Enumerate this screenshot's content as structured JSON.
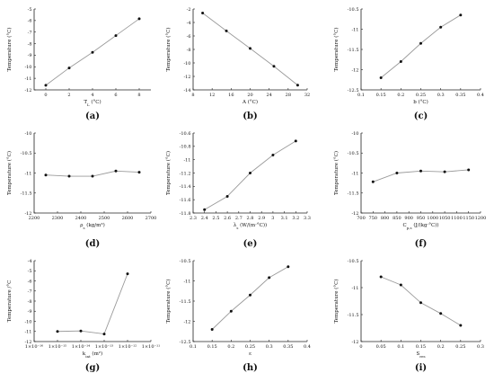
{
  "chart_data": [
    {
      "id": "a",
      "type": "line",
      "caption": "(a)",
      "xlabel": "T",
      "xlabel_sub": "L",
      "xlabel_suffix": " (°C)",
      "ylabel": "Temperature (°C)",
      "xlim": [
        -1,
        9
      ],
      "ylim": [
        -12,
        -5
      ],
      "xticks": [
        "0",
        "2",
        "4",
        "6",
        "8"
      ],
      "xtick_values": [
        0,
        2,
        4,
        6,
        8
      ],
      "yticks": [
        "-5",
        "-6",
        "-7",
        "-8",
        "-9",
        "-10",
        "-11",
        "-12"
      ],
      "ytick_values": [
        -5,
        -6,
        -7,
        -8,
        -9,
        -10,
        -11,
        -12
      ],
      "series": [
        {
          "x": [
            0,
            2,
            4,
            6,
            8
          ],
          "y": [
            -11.6,
            -10.1,
            -8.75,
            -7.3,
            -5.85
          ]
        }
      ]
    },
    {
      "id": "b",
      "type": "line",
      "caption": "(b)",
      "xlabel": "A (°C)",
      "ylabel": "Temperature (°C)",
      "xlim": [
        8,
        32
      ],
      "ylim": [
        -14,
        -2
      ],
      "xticks": [
        "8",
        "12",
        "16",
        "20",
        "24",
        "28",
        "32"
      ],
      "xtick_values": [
        8,
        12,
        16,
        20,
        24,
        28,
        32
      ],
      "yticks": [
        "-2",
        "-4",
        "-6",
        "-8",
        "-10",
        "-12",
        "-14"
      ],
      "ytick_values": [
        -2,
        -4,
        -6,
        -8,
        -10,
        -12,
        -14
      ],
      "series": [
        {
          "x": [
            10,
            15,
            20,
            25,
            30
          ],
          "y": [
            -2.6,
            -5.25,
            -7.85,
            -10.5,
            -13.3
          ]
        }
      ]
    },
    {
      "id": "c",
      "type": "line",
      "caption": "(c)",
      "xlabel": "b (°C)",
      "ylabel": "Temperature (°C)",
      "xlim": [
        0.1,
        0.4
      ],
      "ylim": [
        -12.5,
        -10.5
      ],
      "xticks": [
        "0.1",
        "0.15",
        "0.2",
        "0.25",
        "0.3",
        "0.35",
        "0.4"
      ],
      "xtick_values": [
        0.1,
        0.15,
        0.2,
        0.25,
        0.3,
        0.35,
        0.4
      ],
      "yticks": [
        "-10.5",
        "-11",
        "-11.5",
        "-12",
        "-12.5"
      ],
      "ytick_values": [
        -10.5,
        -11,
        -11.5,
        -12,
        -12.5
      ],
      "series": [
        {
          "x": [
            0.15,
            0.2,
            0.25,
            0.3,
            0.35
          ],
          "y": [
            -12.2,
            -11.8,
            -11.35,
            -10.95,
            -10.65
          ]
        }
      ]
    },
    {
      "id": "d",
      "type": "line",
      "caption": "(d)",
      "xlabel": "ρ",
      "xlabel_sub": "s",
      "xlabel_suffix": " (kg/m³)",
      "ylabel": "Temperature (°C)",
      "xlim": [
        2200,
        2700
      ],
      "ylim": [
        -12,
        -10
      ],
      "xticks": [
        "2200",
        "2300",
        "2400",
        "2500",
        "2600",
        "2700"
      ],
      "xtick_values": [
        2200,
        2300,
        2400,
        2500,
        2600,
        2700
      ],
      "yticks": [
        "-10",
        "-10.5",
        "-11",
        "-11.5",
        "-12"
      ],
      "ytick_values": [
        -10,
        -10.5,
        -11,
        -11.5,
        -12
      ],
      "series": [
        {
          "x": [
            2250,
            2350,
            2450,
            2550,
            2650
          ],
          "y": [
            -11.05,
            -11.08,
            -11.08,
            -10.95,
            -10.98
          ]
        }
      ]
    },
    {
      "id": "e",
      "type": "line",
      "caption": "(e)",
      "xlabel": "λ",
      "xlabel_sub": "s",
      "xlabel_suffix": " (W/(m·°C))",
      "ylabel": "Temperature (°C)",
      "xlim": [
        2.3,
        3.3
      ],
      "ylim": [
        -11.8,
        -10.6
      ],
      "xticks": [
        "2.3",
        "2.4",
        "2.5",
        "2.6",
        "2.7",
        "2.8",
        "2.9",
        "3",
        "3.1",
        "3.2",
        "3.3"
      ],
      "xtick_values": [
        2.3,
        2.4,
        2.5,
        2.6,
        2.7,
        2.8,
        2.9,
        3,
        3.1,
        3.2,
        3.3
      ],
      "yticks": [
        "-10.6",
        "-10.8",
        "-11",
        "-11.2",
        "-11.4",
        "-11.6",
        "-11.8"
      ],
      "ytick_values": [
        -10.6,
        -10.8,
        -11,
        -11.2,
        -11.4,
        -11.6,
        -11.8
      ],
      "series": [
        {
          "x": [
            2.4,
            2.6,
            2.8,
            3.0,
            3.2
          ],
          "y": [
            -11.75,
            -11.55,
            -11.2,
            -10.93,
            -10.72
          ]
        }
      ]
    },
    {
      "id": "f",
      "type": "line",
      "caption": "(f)",
      "xlabel": "C",
      "xlabel_sub": "p,s",
      "xlabel_suffix": " (J/(kg·°C))",
      "ylabel": "Temperature (°C)",
      "xlim": [
        700,
        1200
      ],
      "ylim": [
        -12,
        -10
      ],
      "xticks": [
        "700",
        "750",
        "800",
        "850",
        "900",
        "950",
        "1000",
        "1050",
        "1100",
        "1150",
        "1200"
      ],
      "xtick_values": [
        700,
        750,
        800,
        850,
        900,
        950,
        1000,
        1050,
        1100,
        1150,
        1200
      ],
      "yticks": [
        "-10",
        "-10.5",
        "-11",
        "-11.5",
        "-12"
      ],
      "ytick_values": [
        -10,
        -10.5,
        -11,
        -11.5,
        -12
      ],
      "series": [
        {
          "x": [
            750,
            850,
            950,
            1050,
            1150
          ],
          "y": [
            -11.22,
            -11.0,
            -10.95,
            -10.97,
            -10.92
          ]
        }
      ]
    },
    {
      "id": "g",
      "type": "line",
      "caption": "(g)",
      "xlabel": "k",
      "xlabel_sub": "int",
      "xlabel_suffix": " (m²)",
      "ylabel": "Temperature /°C",
      "xscale": "log",
      "xlim": [
        -16,
        -11
      ],
      "ylim": [
        -12,
        -4
      ],
      "xticks": [
        "1×10⁻¹⁶",
        "1×10⁻¹⁵",
        "1×10⁻¹⁴",
        "1×10⁻¹³",
        "1×10⁻¹²",
        "1×10⁻¹¹"
      ],
      "xtick_values": [
        -16,
        -15,
        -14,
        -13,
        -12,
        -11
      ],
      "yticks": [
        "-4",
        "-5",
        "-6",
        "-7",
        "-8",
        "-9",
        "-10",
        "-11",
        "-12"
      ],
      "ytick_values": [
        -4,
        -5,
        -6,
        -7,
        -8,
        -9,
        -10,
        -11,
        -12
      ],
      "series": [
        {
          "x": [
            -15,
            -14,
            -13,
            -12
          ],
          "y": [
            -11.0,
            -10.95,
            -11.25,
            -5.3
          ]
        }
      ]
    },
    {
      "id": "h",
      "type": "line",
      "caption": "(h)",
      "xlabel": "ε",
      "ylabel": "Temperature (°C)",
      "xlim": [
        0.1,
        0.4
      ],
      "ylim": [
        -12.5,
        -10.5
      ],
      "xticks": [
        "0.1",
        "0.15",
        "0.2",
        "0.25",
        "0.3",
        "0.35",
        "0.4"
      ],
      "xtick_values": [
        0.1,
        0.15,
        0.2,
        0.25,
        0.3,
        0.35,
        0.4
      ],
      "yticks": [
        "-10.5",
        "-11",
        "-11.5",
        "-12",
        "-12.5"
      ],
      "ytick_values": [
        -10.5,
        -11,
        -11.5,
        -12,
        -12.5
      ],
      "series": [
        {
          "x": [
            0.15,
            0.2,
            0.25,
            0.3,
            0.35
          ],
          "y": [
            -12.2,
            -11.75,
            -11.35,
            -10.92,
            -10.65
          ]
        }
      ]
    },
    {
      "id": "i",
      "type": "line",
      "caption": "(i)",
      "xlabel": "S",
      "xlabel_sub": "res",
      "xlabel_suffix": "",
      "ylabel": "Temperature (°C)",
      "xlim": [
        0,
        0.3
      ],
      "ylim": [
        -12,
        -10.5
      ],
      "xticks": [
        "0",
        "0.05",
        "0.1",
        "0.15",
        "0.2",
        "0.25",
        "0.3"
      ],
      "xtick_values": [
        0,
        0.05,
        0.1,
        0.15,
        0.2,
        0.25,
        0.3
      ],
      "yticks": [
        "-10.5",
        "-11",
        "-11.5",
        "-12"
      ],
      "ytick_values": [
        -10.5,
        -11,
        -11.5,
        -12
      ],
      "series": [
        {
          "x": [
            0.05,
            0.1,
            0.15,
            0.2,
            0.25
          ],
          "y": [
            -10.8,
            -10.95,
            -11.28,
            -11.48,
            -11.7
          ]
        }
      ]
    }
  ]
}
